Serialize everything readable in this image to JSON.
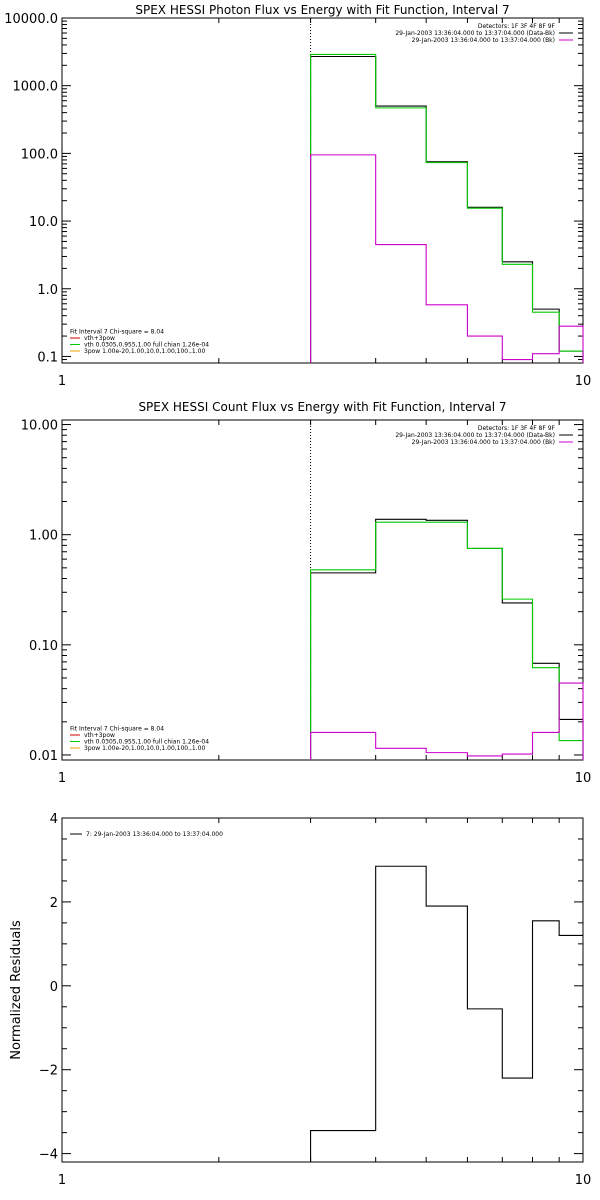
{
  "colors": {
    "black": "#000000",
    "green": "#00cc00",
    "magenta": "#cc00cc",
    "orange": "#e6a000",
    "red": "#cc0000"
  },
  "chart_data": [
    {
      "type": "line",
      "step": true,
      "title": "SPEX HESSI Photon Flux vs Energy with Fit Function, Interval 7",
      "xscale": "log",
      "yscale": "log",
      "xlim": [
        1,
        10
      ],
      "ylim": [
        0.08,
        10000
      ],
      "x_ticks": [
        1,
        10
      ],
      "x_tick_labels": [
        "1",
        "10"
      ],
      "y_ticks": [
        0.1,
        1,
        10,
        100,
        1000,
        10000
      ],
      "y_tick_labels": [
        "0.1",
        "1.0",
        "10.0",
        "100.0",
        "1000.0",
        "10000.0"
      ],
      "vline_x": 3,
      "legend_top": {
        "lines": [
          "Detectors: 1F 3F 4F 8F 9F",
          "29-Jan-2003 13:36:04.000 to 13:37:04.000 (Data-Bk)",
          "29-Jan-2003 13:36:04.000 to 13:37:04.000 (Bk)"
        ],
        "colors": [
          "",
          "#000000",
          "#cc00cc"
        ]
      },
      "legend_bottom": {
        "lines": [
          "Fit Interval 7   Chi-square = 8.04",
          "vth+3pow",
          "vth 0.0305,0.955,1.00  full chian 1.26e-04",
          "3pow 1.00e-20,1.00,10.0,1.00,100.,1.00"
        ],
        "colors": [
          "",
          "#cc0000",
          "#00cc00",
          "#e6a000"
        ]
      },
      "edges": [
        3,
        4,
        5,
        6,
        7,
        8,
        9,
        10
      ],
      "series": [
        {
          "name": "Data-Bk",
          "color": "#000000",
          "values": [
            2700,
            500,
            75,
            16,
            2.5,
            0.5,
            0.12
          ]
        },
        {
          "name": "vth",
          "color": "#00cc00",
          "values": [
            2900,
            470,
            73,
            15.5,
            2.3,
            0.45,
            0.12
          ]
        },
        {
          "name": "Bk",
          "color": "#cc00cc",
          "values": [
            95,
            4.5,
            0.58,
            0.2,
            0.09,
            0.11,
            0.28
          ]
        }
      ]
    },
    {
      "type": "line",
      "step": true,
      "title": "SPEX HESSI Count Flux vs Energy with Fit Function, Interval 7",
      "xscale": "log",
      "yscale": "log",
      "xlim": [
        1,
        10
      ],
      "ylim": [
        0.009,
        11
      ],
      "x_ticks": [
        1,
        10
      ],
      "x_tick_labels": [
        "1",
        "10"
      ],
      "y_ticks": [
        0.01,
        0.1,
        1,
        10
      ],
      "y_tick_labels": [
        "0.01",
        "0.10",
        "1.00",
        "10.00"
      ],
      "vline_x": 3,
      "legend_top": {
        "lines": [
          "Detectors: 1F 3F 4F 8F 9F",
          "29-Jan-2003 13:36:04.000 to 13:37:04.000 (Data-Bk)",
          "29-Jan-2003 13:36:04.000 to 13:37:04.000 (Bk)"
        ],
        "colors": [
          "",
          "#000000",
          "#cc00cc"
        ]
      },
      "legend_bottom": {
        "lines": [
          "Fit Interval 7   Chi-square = 8.04",
          "vth+3pow",
          "vth 0.0305,0.955,1.00  full chian 1.26e-04",
          "3pow 1.00e-20,1.00,10.0,1.00,100.,1.00"
        ],
        "colors": [
          "",
          "#cc0000",
          "#00cc00",
          "#e6a000"
        ]
      },
      "edges": [
        3,
        4,
        5,
        6,
        7,
        8,
        9,
        10
      ],
      "series": [
        {
          "name": "Data-Bk",
          "color": "#000000",
          "values": [
            0.45,
            1.38,
            1.35,
            0.75,
            0.24,
            0.068,
            0.021
          ]
        },
        {
          "name": "vth",
          "color": "#00cc00",
          "values": [
            0.48,
            1.3,
            1.3,
            0.75,
            0.26,
            0.062,
            0.0135
          ]
        },
        {
          "name": "Bk",
          "color": "#cc00cc",
          "values": [
            0.016,
            0.0115,
            0.0105,
            0.0098,
            0.0102,
            0.016,
            0.045
          ]
        }
      ]
    },
    {
      "type": "line",
      "step": true,
      "title": "",
      "xscale": "log",
      "yscale": "linear",
      "xlim": [
        1,
        10
      ],
      "ylim": [
        -4.2,
        4
      ],
      "x_ticks": [
        1,
        10
      ],
      "x_tick_labels": [
        "1",
        "10"
      ],
      "y_ticks": [
        -4,
        -2,
        0,
        2,
        4
      ],
      "y_tick_labels": [
        "−4",
        "−2",
        "0",
        "2",
        "4"
      ],
      "ylabel": "Normalized Residuals",
      "legend_top": {
        "lines": [
          "7: 29-Jan-2003 13:36:04.000 to 13:37:04.000"
        ],
        "colors": [
          "#000000"
        ]
      },
      "edges": [
        3,
        4,
        5,
        6,
        7,
        8,
        9,
        10
      ],
      "series": [
        {
          "name": "7: 29-Jan-2003 13:36:04.000 to 13:37:04.000",
          "color": "#000000",
          "values": [
            -3.45,
            2.85,
            1.9,
            -0.55,
            -2.2,
            1.55,
            1.2
          ]
        }
      ]
    }
  ]
}
